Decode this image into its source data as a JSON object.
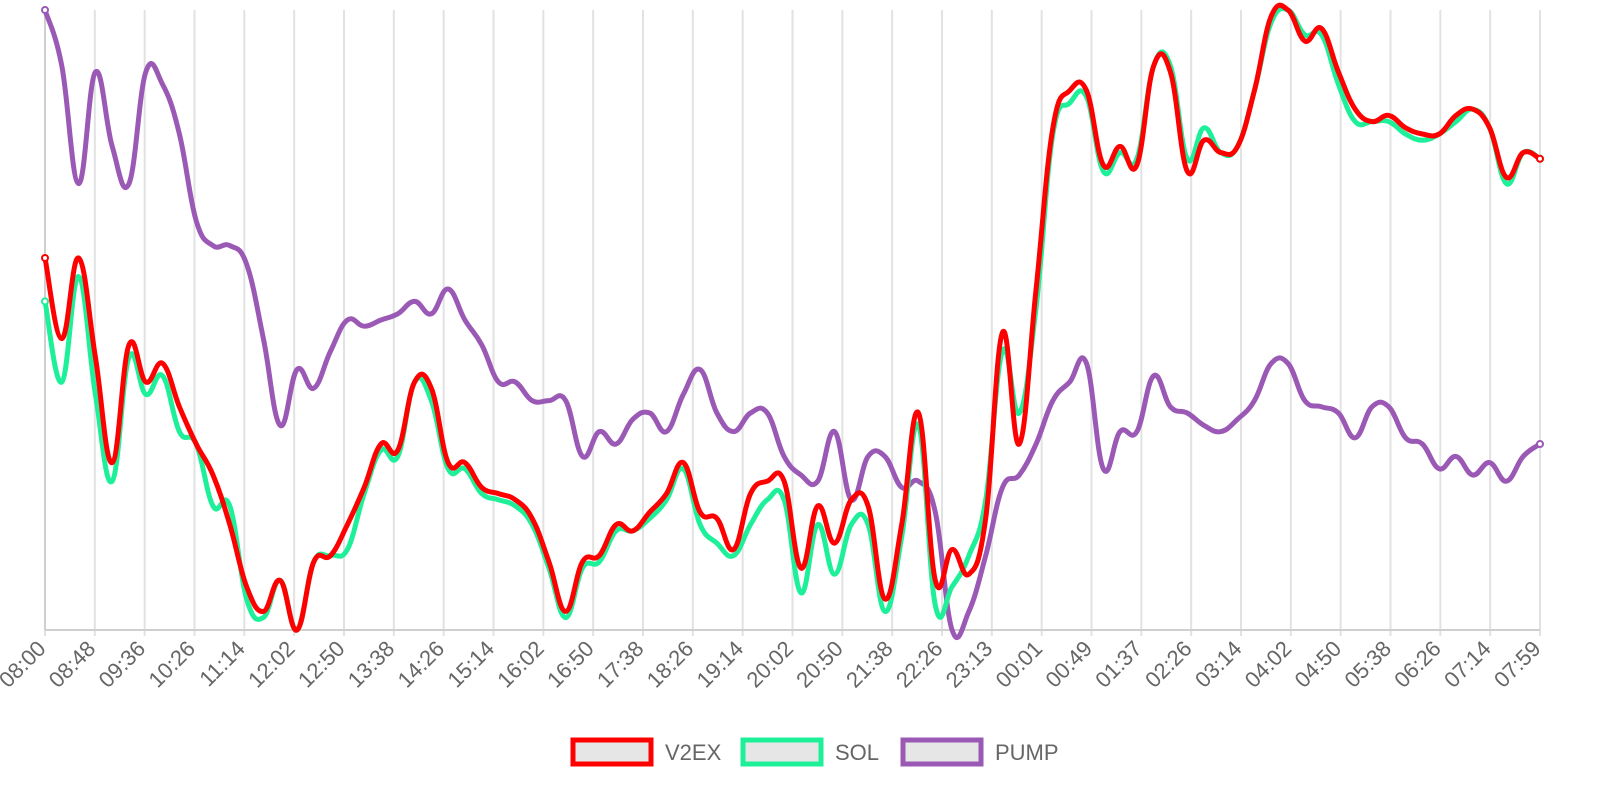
{
  "chart_data": {
    "type": "line",
    "title": "",
    "xlabel": "",
    "ylabel": "",
    "y_axis_labels_shown": false,
    "grid": "vertical",
    "legend_position": "bottom-center",
    "ylim": [
      0,
      100
    ],
    "x_ticks": [
      "08:00",
      "08:48",
      "09:36",
      "10:26",
      "11:14",
      "12:02",
      "12:50",
      "13:38",
      "14:26",
      "15:14",
      "16:02",
      "16:50",
      "17:38",
      "18:26",
      "19:14",
      "20:02",
      "20:50",
      "21:38",
      "22:26",
      "23:13",
      "00:01",
      "00:49",
      "01:37",
      "02:26",
      "03:14",
      "04:02",
      "04:50",
      "05:38",
      "06:26",
      "07:14",
      "07:59"
    ],
    "series": [
      {
        "name": "V2EX",
        "color": "#ff0000",
        "values": [
          60,
          47,
          60,
          44,
          27,
          46,
          40,
          43,
          36,
          30,
          25,
          17,
          7,
          3,
          8,
          0,
          11,
          12,
          17,
          23,
          30,
          29,
          40,
          39,
          27,
          27,
          23,
          22,
          21,
          18,
          11,
          3,
          11,
          12,
          17,
          16,
          19,
          22,
          27,
          19,
          18,
          13,
          22,
          24,
          24,
          10,
          20,
          14,
          21,
          20,
          5,
          17,
          35,
          8,
          13,
          9,
          18,
          48,
          30,
          55,
          81,
          87,
          87,
          75,
          78,
          75,
          91,
          90,
          74,
          79,
          77,
          78,
          87,
          99,
          100,
          95,
          97,
          90,
          84,
          82,
          83,
          81,
          80,
          80,
          83,
          84,
          81,
          73,
          77,
          76
        ]
      },
      {
        "name": "SOL",
        "color": "#1ef09a",
        "values": [
          53,
          40,
          57,
          38,
          24,
          44,
          38,
          41,
          32,
          30,
          20,
          20,
          5,
          2,
          8,
          0,
          11,
          12,
          13,
          22,
          29,
          28,
          40,
          37,
          26,
          26,
          22,
          21,
          20,
          17,
          10,
          2,
          10,
          11,
          16,
          16,
          18,
          21,
          26,
          17,
          14,
          12,
          17,
          21,
          21,
          6,
          17,
          9,
          17,
          17,
          3,
          15,
          33,
          4,
          7,
          12,
          21,
          45,
          35,
          52,
          80,
          85,
          86,
          74,
          77,
          76,
          91,
          91,
          76,
          81,
          77,
          78,
          87,
          98,
          100,
          96,
          96,
          88,
          82,
          82,
          82,
          80,
          79,
          80,
          82,
          84,
          81,
          72,
          77,
          76
        ]
      },
      {
        "name": "PUMP",
        "color": "#9b59b6",
        "values": [
          100,
          91,
          72,
          90,
          78,
          72,
          90,
          88,
          80,
          66,
          62,
          62,
          59,
          47,
          33,
          42,
          39,
          45,
          50,
          49,
          50,
          51,
          53,
          51,
          55,
          50,
          46,
          40,
          40,
          37,
          37,
          37,
          28,
          32,
          30,
          34,
          35,
          32,
          38,
          42,
          35,
          32,
          35,
          35,
          28,
          25,
          24,
          32,
          21,
          28,
          28,
          23,
          24,
          19,
          0,
          3,
          12,
          23,
          25,
          30,
          37,
          40,
          43,
          26,
          32,
          32,
          41,
          36,
          35,
          33,
          32,
          34,
          37,
          43,
          43,
          37,
          36,
          35,
          31,
          36,
          36,
          31,
          30,
          26,
          28,
          25,
          27,
          24,
          28,
          30
        ]
      }
    ]
  }
}
